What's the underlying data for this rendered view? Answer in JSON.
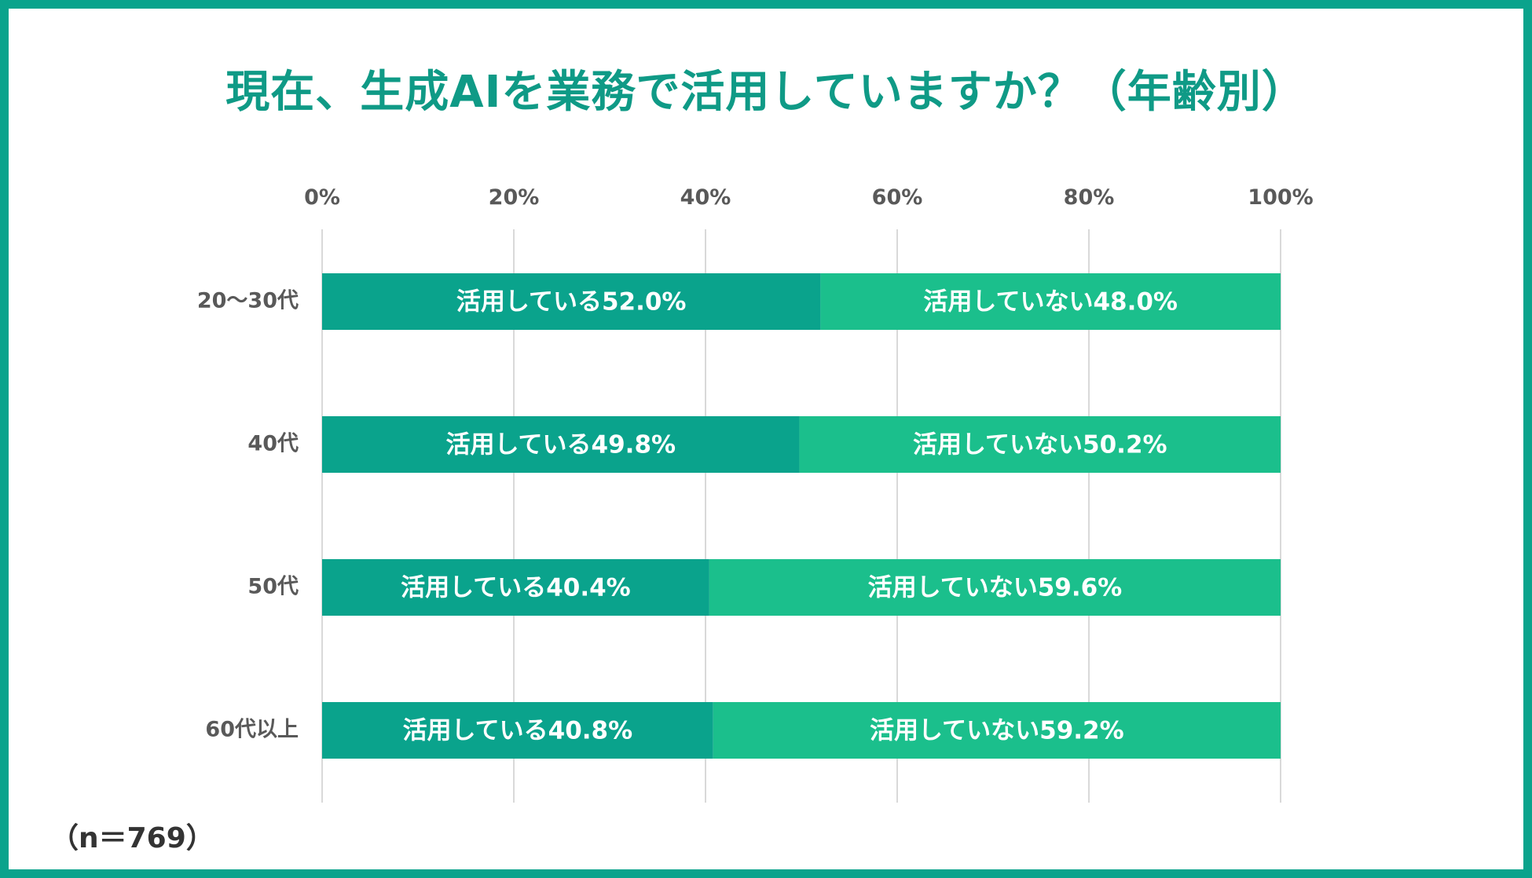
{
  "colors": {
    "frame": "#0aa38c",
    "title": "#0f9a86",
    "using": "#0aa38c",
    "not_using": "#1bbf8c",
    "grid": "#d9d9d9",
    "axis_text": "#595959"
  },
  "chart_data": {
    "type": "bar",
    "orientation": "horizontal",
    "stacked": true,
    "percent": true,
    "title": "現在、生成AIを業務で活用していますか？（年齢別）",
    "note": "（n＝769）",
    "categories": [
      "20～30代",
      "40代",
      "50代",
      "60代以上"
    ],
    "xlim": [
      0,
      100
    ],
    "xticks": [
      0,
      20,
      40,
      60,
      80,
      100
    ],
    "xtick_labels": [
      "0%",
      "20%",
      "40%",
      "60%",
      "80%",
      "100%"
    ],
    "grid": "vertical",
    "series": [
      {
        "name": "活用している",
        "color": "#0aa38c",
        "values": [
          52.0,
          49.8,
          40.4,
          40.8
        ],
        "labels": [
          "活用している52.0%",
          "活用している49.8%",
          "活用している40.4%",
          "活用している40.8%"
        ]
      },
      {
        "name": "活用していない",
        "color": "#1bbf8c",
        "values": [
          48.0,
          50.2,
          59.6,
          59.2
        ],
        "labels": [
          "活用していない48.0%",
          "活用していない50.2%",
          "活用していない59.6%",
          "活用していない59.2%"
        ]
      }
    ]
  }
}
